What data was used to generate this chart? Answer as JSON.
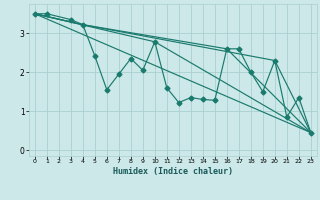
{
  "title": "",
  "xlabel": "Humidex (Indice chaleur)",
  "ylabel": "",
  "bg_color": "#cce8e8",
  "grid_color": "#aacfcf",
  "line_color": "#1a7a6e",
  "xlim": [
    -0.5,
    23.5
  ],
  "ylim": [
    -0.15,
    3.75
  ],
  "xticks": [
    0,
    1,
    2,
    3,
    4,
    5,
    6,
    7,
    8,
    9,
    10,
    11,
    12,
    13,
    14,
    15,
    16,
    17,
    18,
    19,
    20,
    21,
    22,
    23
  ],
  "yticks": [
    0,
    1,
    2,
    3
  ],
  "series": [
    [
      0,
      3.5
    ],
    [
      1,
      3.5
    ],
    [
      3,
      3.35
    ],
    [
      4,
      3.22
    ],
    [
      5,
      2.42
    ],
    [
      6,
      1.55
    ],
    [
      7,
      1.95
    ],
    [
      8,
      2.35
    ],
    [
      9,
      2.05
    ],
    [
      10,
      2.78
    ],
    [
      11,
      1.6
    ],
    [
      12,
      1.22
    ],
    [
      13,
      1.35
    ],
    [
      14,
      1.3
    ],
    [
      15,
      1.28
    ],
    [
      16,
      2.6
    ],
    [
      17,
      2.6
    ],
    [
      18,
      2.0
    ],
    [
      19,
      1.5
    ],
    [
      20,
      2.3
    ],
    [
      21,
      0.85
    ],
    [
      22,
      1.35
    ],
    [
      23,
      0.45
    ]
  ],
  "line2": [
    [
      0,
      3.5
    ],
    [
      23,
      0.45
    ]
  ],
  "line3": [
    [
      0,
      3.5
    ],
    [
      10,
      2.78
    ],
    [
      23,
      0.45
    ]
  ],
  "line4": [
    [
      0,
      3.5
    ],
    [
      4,
      3.22
    ],
    [
      16,
      2.6
    ],
    [
      23,
      0.45
    ]
  ],
  "line5": [
    [
      0,
      3.5
    ],
    [
      4,
      3.22
    ],
    [
      20,
      2.3
    ],
    [
      23,
      0.45
    ]
  ]
}
